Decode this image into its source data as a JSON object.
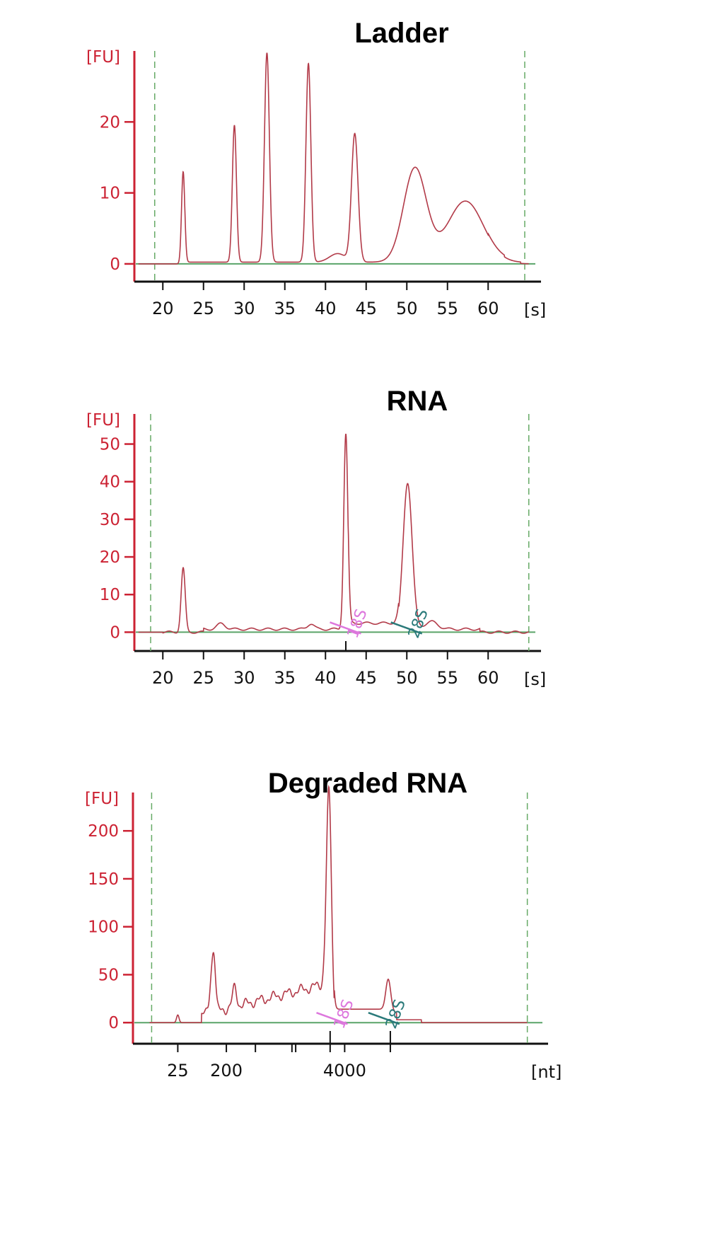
{
  "colors": {
    "trace": "#b23a48",
    "baseline": "#5aa469",
    "marker18s": "#dd77dd",
    "marker28s": "#2a7a7a",
    "axis": "#111111",
    "yaxis": "#cc2233",
    "dashed": "#66aa66"
  },
  "chart_data": [
    {
      "type": "line",
      "title": "Ladder",
      "y_unit": "[FU]",
      "x_unit": "[s]",
      "ylim": [
        -2.5,
        30
      ],
      "xlim": [
        16.5,
        66.5
      ],
      "dashed_x": [
        19,
        64.5
      ],
      "y_ticks": [
        0,
        10,
        20
      ],
      "x_ticks": [
        20,
        25,
        30,
        35,
        40,
        45,
        50,
        55,
        60
      ],
      "x_tick_labels": [
        "20",
        "25",
        "30",
        "35",
        "40",
        "45",
        "50",
        "55",
        "60"
      ],
      "peaks": [
        {
          "x": 22.5,
          "y": 13,
          "w": 0.2
        },
        {
          "x": 28.8,
          "y": 19.3,
          "w": 0.25
        },
        {
          "x": 32.8,
          "y": 29.5,
          "w": 0.3
        },
        {
          "x": 37.9,
          "y": 28,
          "w": 0.3
        },
        {
          "x": 41.5,
          "y": 1.2,
          "w": 1.0
        },
        {
          "x": 43.6,
          "y": 18,
          "w": 0.4
        },
        {
          "x": 51.0,
          "y": 13.2,
          "w": 1.4
        },
        {
          "x": 57.2,
          "y": 8.6,
          "w": 2.2
        }
      ],
      "markers": []
    },
    {
      "type": "line",
      "title": "RNA",
      "y_unit": "[FU]",
      "x_unit": "[s]",
      "ylim": [
        -5,
        58
      ],
      "xlim": [
        16.5,
        66.5
      ],
      "dashed_x": [
        18.5,
        65
      ],
      "y_ticks": [
        0,
        10,
        20,
        30,
        40,
        50
      ],
      "x_ticks": [
        20,
        25,
        30,
        35,
        40,
        45,
        50,
        55,
        60
      ],
      "x_tick_labels": [
        "20",
        "25",
        "30",
        "35",
        "40",
        "45",
        "50",
        "55",
        "60"
      ],
      "peaks": [
        {
          "x": 22.5,
          "y": 17,
          "w": 0.25
        },
        {
          "x": 27.2,
          "y": 1.5,
          "w": 0.5
        },
        {
          "x": 38.2,
          "y": 1.5,
          "w": 0.4
        },
        {
          "x": 42.5,
          "y": 52,
          "w": 0.25
        },
        {
          "x": 50.1,
          "y": 39,
          "w": 0.55
        },
        {
          "x": 53.0,
          "y": 2.0,
          "w": 0.8
        }
      ],
      "markers": [
        {
          "label": "18S",
          "x": 43.5
        },
        {
          "label": "28S",
          "x": 51.0
        }
      ]
    },
    {
      "type": "line",
      "title": "Degraded RNA",
      "y_unit": "[FU]",
      "x_unit": "[nt]",
      "ylim": [
        -22,
        240
      ],
      "xlim": [
        0,
        100
      ],
      "dashed_x": [
        4.5,
        95
      ],
      "y_ticks": [
        0,
        50,
        100,
        150,
        200
      ],
      "x_ticks": [
        10.8,
        22.5,
        29.5,
        38.3,
        39.2,
        47.5,
        51.0,
        62.0
      ],
      "x_tick_labels": [
        "25",
        "200",
        "",
        "",
        "",
        "",
        "4000",
        ""
      ],
      "peaks": [
        {
          "x": 10.8,
          "y": 8,
          "w": 0.3
        },
        {
          "x": 18.8,
          "y": 30,
          "w": 0.4
        },
        {
          "x": 19.5,
          "y": 57,
          "w": 0.4
        },
        {
          "x": 24.5,
          "y": 20,
          "w": 0.5
        },
        {
          "x": 47.2,
          "y": 226,
          "w": 0.6
        },
        {
          "x": 61.5,
          "y": 33,
          "w": 0.6
        }
      ],
      "markers": [
        {
          "label": "18S",
          "x": 50.0
        },
        {
          "label": "28S",
          "x": 62.5
        }
      ]
    }
  ]
}
